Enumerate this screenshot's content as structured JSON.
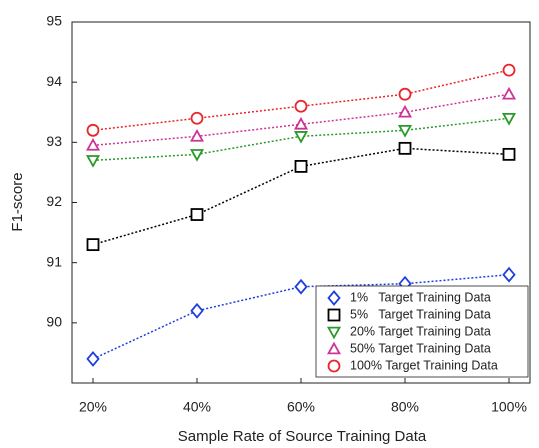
{
  "chart_data": {
    "type": "line",
    "xlabel": "Sample Rate of Source Training Data",
    "ylabel": "F1-score",
    "categories": [
      "20%",
      "40%",
      "60%",
      "80%",
      "100%"
    ],
    "ylim": [
      89,
      95
    ],
    "yticks": [
      90,
      91,
      92,
      93,
      94,
      95
    ],
    "legend": "lower right",
    "series": [
      {
        "name": "1%   Target Training Data",
        "color": "#1f3fdc",
        "marker": "diamond",
        "values": [
          89.4,
          90.2,
          90.6,
          90.65,
          90.8
        ]
      },
      {
        "name": "5%   Target Training Data",
        "color": "#000000",
        "marker": "square",
        "values": [
          91.3,
          91.8,
          92.6,
          92.9,
          92.8
        ]
      },
      {
        "name": "20% Target Training Data",
        "color": "#2a9a2a",
        "marker": "triangle-down",
        "values": [
          92.7,
          92.8,
          93.1,
          93.2,
          93.4
        ]
      },
      {
        "name": "50% Target Training Data",
        "color": "#cc3399",
        "marker": "triangle-up",
        "values": [
          92.95,
          93.1,
          93.3,
          93.5,
          93.8
        ]
      },
      {
        "name": "100% Target Training Data",
        "color": "#e8252b",
        "marker": "circle",
        "values": [
          93.2,
          93.4,
          93.6,
          93.8,
          94.2
        ]
      }
    ]
  }
}
